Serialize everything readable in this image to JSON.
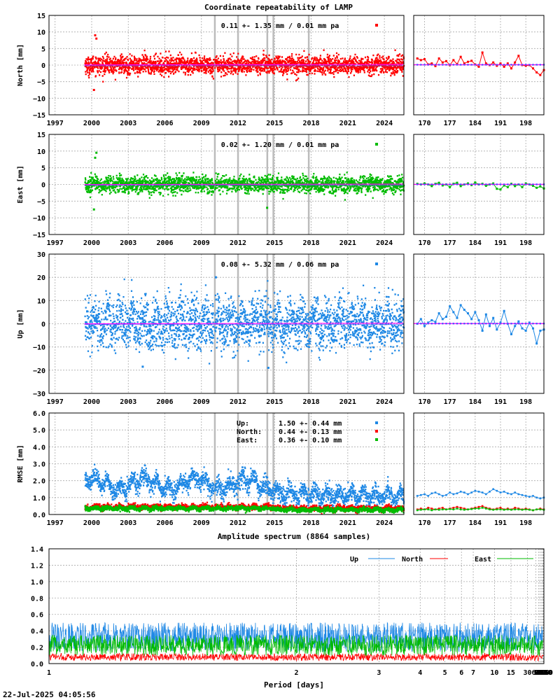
{
  "title": "Coordinate repeatability of LAMP",
  "timestamp": "22-Jul-2025 04:05:56",
  "chart_data": [
    {
      "type": "scatter",
      "panel": "north",
      "ylabel": "North [mm]",
      "annotation": "0.11 +- 1.35 mm /  0.01 mm pa",
      "ylim": [
        -15,
        15
      ],
      "yticks": [
        "15",
        "10",
        "5",
        "0",
        "−5",
        "−10",
        "−15"
      ],
      "xlim": [
        1996.5,
        2025.6
      ],
      "xticks": [
        "1997",
        "2000",
        "2003",
        "2006",
        "2009",
        "2012",
        "2015",
        "2018",
        "2021",
        "2024"
      ],
      "color": "#ff0000",
      "data_start": 1999.4,
      "noise_sd": 1.35,
      "trend": 0.11,
      "outliers": [
        [
          2000.2,
          9.0
        ],
        [
          2000.3,
          8.0
        ],
        [
          2000.1,
          -7.5
        ]
      ],
      "recent": {
        "xlim": [
          167,
          203
        ],
        "xticks": [
          "170",
          "177",
          "184",
          "191",
          "198"
        ],
        "values": [
          2.0,
          1.5,
          1.8,
          0.2,
          0.5,
          -0.3,
          2.0,
          0.8,
          1.2,
          0.0,
          1.5,
          0.3,
          2.5,
          0.5,
          1.0,
          1.3,
          0.2,
          -0.5,
          3.8,
          0.5,
          0.0,
          0.8,
          -0.2,
          0.5,
          -0.5,
          0.5,
          -1.0,
          0.8,
          2.8,
          0.0,
          -0.2,
          0.0,
          -1.0,
          -2.2,
          -3.0,
          -1.5
        ]
      }
    },
    {
      "type": "scatter",
      "panel": "east",
      "ylabel": "East [mm]",
      "annotation": "0.02 +- 1.20 mm /  0.01 mm pa",
      "ylim": [
        -15,
        15
      ],
      "yticks": [
        "15",
        "10",
        "5",
        "0",
        "−5",
        "−10",
        "−15"
      ],
      "xlim": [
        1996.5,
        2025.6
      ],
      "xticks": [
        "1997",
        "2000",
        "2003",
        "2006",
        "2009",
        "2012",
        "2015",
        "2018",
        "2021",
        "2024"
      ],
      "color": "#00bb00",
      "data_start": 1999.4,
      "noise_sd": 1.2,
      "trend": 0.02,
      "outliers": [
        [
          2000.3,
          9.5
        ],
        [
          2000.2,
          8.0
        ],
        [
          2000.1,
          -7.5
        ],
        [
          2014.3,
          -7.0
        ]
      ],
      "recent": {
        "xlim": [
          167,
          203
        ],
        "xticks": [
          "170",
          "177",
          "184",
          "191",
          "198"
        ],
        "values": [
          0.2,
          0.0,
          0.3,
          0.0,
          -0.5,
          0.2,
          0.5,
          -0.3,
          0.0,
          -0.8,
          0.2,
          0.5,
          -0.5,
          0.0,
          0.3,
          -0.2,
          0.6,
          0.0,
          0.2,
          -0.4,
          0.0,
          0.3,
          -1.3,
          -1.5,
          -0.3,
          -0.8,
          0.2,
          -0.5,
          0.0,
          -0.8,
          0.3,
          0.0,
          -0.4,
          -1.0,
          -0.6,
          -1.2
        ]
      }
    },
    {
      "type": "scatter",
      "panel": "up",
      "ylabel": "Up [mm]",
      "annotation": "0.08 +- 5.32 mm /  0.06 mm pa",
      "ylim": [
        -30,
        30
      ],
      "yticks": [
        "30",
        "20",
        "10",
        "0",
        "−10",
        "−20",
        "−30"
      ],
      "xlim": [
        1996.5,
        2025.6
      ],
      "xticks": [
        "1997",
        "2000",
        "2003",
        "2006",
        "2009",
        "2012",
        "2015",
        "2018",
        "2021",
        "2024"
      ],
      "color": "#1e88e5",
      "data_start": 1999.4,
      "noise_sd": 5.32,
      "trend": 0.08,
      "outliers": [
        [
          2010.1,
          20.0
        ],
        [
          2014.4,
          -19.0
        ],
        [
          2004.1,
          -18.5
        ]
      ],
      "recent": {
        "xlim": [
          167,
          203
        ],
        "xticks": [
          "170",
          "177",
          "184",
          "191",
          "198"
        ],
        "values": [
          0.0,
          2.0,
          -1.0,
          0.5,
          1.5,
          0.8,
          4.5,
          2.0,
          3.0,
          7.5,
          5.0,
          2.5,
          8.0,
          6.0,
          4.5,
          2.0,
          5.0,
          1.5,
          -3.0,
          4.0,
          -1.0,
          2.5,
          -2.5,
          0.5,
          5.5,
          0.0,
          -4.5,
          -1.0,
          1.0,
          -2.0,
          -3.0,
          0.5,
          -2.0,
          -8.5,
          -3.0,
          -2.5
        ]
      }
    },
    {
      "type": "scatter",
      "panel": "rmse",
      "ylabel": "RMSE [mm]",
      "ylim": [
        0,
        6
      ],
      "yticks": [
        "6.0",
        "5.0",
        "4.0",
        "3.0",
        "2.0",
        "1.0",
        "0.0"
      ],
      "xlim": [
        1996.5,
        2025.6
      ],
      "xticks": [
        "1997",
        "2000",
        "2003",
        "2006",
        "2009",
        "2012",
        "2015",
        "2018",
        "2021",
        "2024"
      ],
      "legend": [
        {
          "name": "Up:",
          "text": "1.50 +- 0.44 mm",
          "color": "#1e88e5",
          "mean": 1.5,
          "sd": 0.44
        },
        {
          "name": "North:",
          "text": "0.44 +- 0.13 mm",
          "color": "#ff0000",
          "mean": 0.44,
          "sd": 0.13
        },
        {
          "name": "East:",
          "text": "0.36 +- 0.10 mm",
          "color": "#00bb00",
          "mean": 0.36,
          "sd": 0.1
        }
      ],
      "recent": {
        "xlim": [
          167,
          203
        ],
        "xticks": [
          "170",
          "177",
          "184",
          "191",
          "198"
        ],
        "up": [
          1.1,
          1.15,
          1.2,
          1.1,
          1.25,
          1.3,
          1.2,
          1.1,
          1.15,
          1.3,
          1.2,
          1.25,
          1.35,
          1.3,
          1.2,
          1.3,
          1.4,
          1.35,
          1.3,
          1.2,
          1.35,
          1.5,
          1.4,
          1.3,
          1.35,
          1.25,
          1.2,
          1.3,
          1.2,
          1.15,
          1.1,
          1.05,
          1.1,
          1.0,
          0.95,
          1.0
        ],
        "north": [
          0.3,
          0.35,
          0.3,
          0.4,
          0.35,
          0.3,
          0.35,
          0.4,
          0.3,
          0.35,
          0.4,
          0.45,
          0.4,
          0.35,
          0.3,
          0.35,
          0.4,
          0.45,
          0.5,
          0.4,
          0.35,
          0.3,
          0.35,
          0.4,
          0.3,
          0.35,
          0.3,
          0.4,
          0.35,
          0.3,
          0.35,
          0.3,
          0.25,
          0.3,
          0.35,
          0.3
        ],
        "east": [
          0.25,
          0.28,
          0.3,
          0.3,
          0.25,
          0.3,
          0.28,
          0.3,
          0.3,
          0.32,
          0.3,
          0.35,
          0.3,
          0.28,
          0.3,
          0.32,
          0.35,
          0.35,
          0.4,
          0.35,
          0.3,
          0.28,
          0.3,
          0.3,
          0.28,
          0.3,
          0.28,
          0.3,
          0.3,
          0.28,
          0.3,
          0.28,
          0.25,
          0.3,
          0.3,
          0.28
        ]
      }
    },
    {
      "type": "line",
      "panel": "spectrum",
      "title": "Amplitude spectrum (8864 samples)",
      "xlabel": "Period [days]",
      "xscale": "reciprocal",
      "xticks": [
        "1",
        "2",
        "3",
        "4",
        "5",
        "6",
        "7",
        "10",
        "15",
        "30",
        "61",
        "91",
        "122",
        "183",
        "365",
        "730",
        "2190",
        "4380",
        "8760"
      ],
      "ylim": [
        0,
        1.4
      ],
      "yticks": [
        "1.4",
        "1.2",
        "1.0",
        "0.8",
        "0.6",
        "0.4",
        "0.2",
        "0.0"
      ],
      "legend": [
        "Up",
        "North",
        "East"
      ],
      "series": [
        {
          "name": "Up",
          "color": "#1e88e5",
          "anchors": [
            [
              8760,
              0.4
            ],
            [
              6000,
              0.45
            ],
            [
              4380,
              0.5
            ],
            [
              3000,
              0.52
            ],
            [
              2190,
              0.6
            ],
            [
              1800,
              0.95
            ],
            [
              1460,
              0.5
            ],
            [
              1200,
              0.85
            ],
            [
              1000,
              0.3
            ],
            [
              900,
              0.8
            ],
            [
              730,
              0.4
            ],
            [
              600,
              0.55
            ],
            [
              500,
              0.75
            ],
            [
              420,
              0.95
            ],
            [
              365,
              1.25
            ],
            [
              330,
              0.6
            ],
            [
              300,
              0.8
            ],
            [
              250,
              0.45
            ],
            [
              200,
              0.55
            ],
            [
              183,
              0.35
            ],
            [
              150,
              0.35
            ],
            [
              122,
              0.35
            ],
            [
              100,
              0.25
            ],
            [
              91,
              0.25
            ],
            [
              61,
              0.2
            ],
            [
              30,
              0.15
            ],
            [
              15,
              0.12
            ],
            [
              7,
              0.11
            ],
            [
              2,
              0.1
            ],
            [
              1.1,
              0.12
            ],
            [
              1.02,
              1.4
            ]
          ]
        },
        {
          "name": "North",
          "color": "#ff0000",
          "anchors": [
            [
              8760,
              0.1
            ],
            [
              6000,
              0.25
            ],
            [
              4380,
              0.38
            ],
            [
              3000,
              0.2
            ],
            [
              2190,
              0.15
            ],
            [
              1500,
              0.2
            ],
            [
              1000,
              0.15
            ],
            [
              730,
              0.2
            ],
            [
              500,
              0.2
            ],
            [
              420,
              0.3
            ],
            [
              365,
              0.4
            ],
            [
              330,
              0.15
            ],
            [
              300,
              0.2
            ],
            [
              250,
              0.15
            ],
            [
              200,
              0.18
            ],
            [
              183,
              0.12
            ],
            [
              122,
              0.1
            ],
            [
              91,
              0.06
            ],
            [
              61,
              0.05
            ],
            [
              30,
              0.04
            ],
            [
              15,
              0.03
            ],
            [
              7,
              0.03
            ],
            [
              2,
              0.03
            ],
            [
              1.1,
              0.04
            ],
            [
              1.02,
              0.4
            ]
          ]
        },
        {
          "name": "East",
          "color": "#00bb00",
          "anchors": [
            [
              8760,
              0.28
            ],
            [
              6000,
              0.25
            ],
            [
              4380,
              0.2
            ],
            [
              3000,
              0.2
            ],
            [
              2190,
              0.15
            ],
            [
              1500,
              0.2
            ],
            [
              1000,
              0.12
            ],
            [
              730,
              0.15
            ],
            [
              500,
              0.2
            ],
            [
              420,
              0.3
            ],
            [
              365,
              0.4
            ],
            [
              330,
              0.2
            ],
            [
              300,
              0.15
            ],
            [
              250,
              0.15
            ],
            [
              200,
              0.16
            ],
            [
              183,
              0.1
            ],
            [
              122,
              0.1
            ],
            [
              91,
              0.06
            ],
            [
              61,
              0.05
            ],
            [
              30,
              0.05
            ],
            [
              15,
              0.04
            ],
            [
              7,
              0.04
            ],
            [
              2,
              0.04
            ],
            [
              1.1,
              0.05
            ],
            [
              1.02,
              0.3
            ]
          ]
        }
      ]
    }
  ]
}
